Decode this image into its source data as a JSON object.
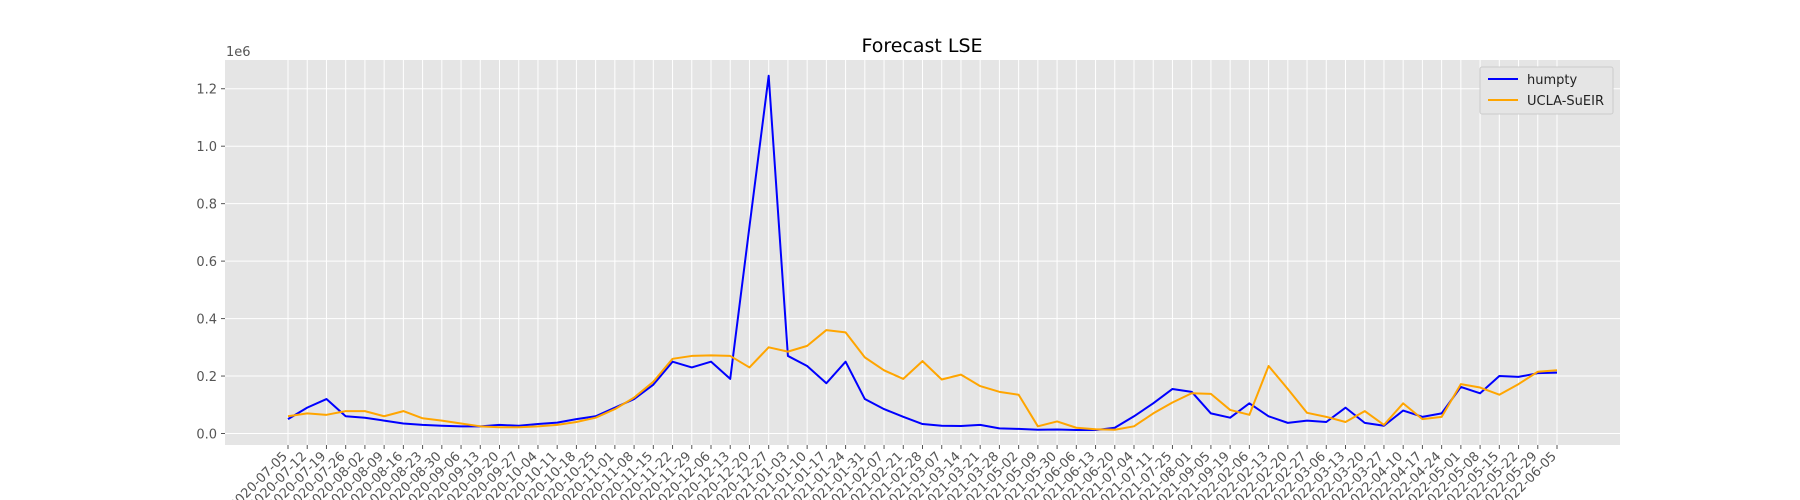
{
  "chart_data": {
    "type": "line",
    "title": "Forecast LSE",
    "xlabel": "",
    "ylabel": "",
    "y_scale_label": "1e6",
    "ylim": [
      -0.04,
      1.3
    ],
    "yticks": [
      0.0,
      0.2,
      0.4,
      0.6,
      0.8,
      1.0,
      1.2
    ],
    "ytick_labels": [
      "0.0",
      "0.2",
      "0.4",
      "0.6",
      "0.8",
      "1.0",
      "1.2"
    ],
    "grid": true,
    "legend_position": "top-right",
    "x": [
      "2020-07-05",
      "2020-07-12",
      "2020-07-19",
      "2020-07-26",
      "2020-08-02",
      "2020-08-09",
      "2020-08-16",
      "2020-08-23",
      "2020-08-30",
      "2020-09-06",
      "2020-09-13",
      "2020-09-20",
      "2020-09-27",
      "2020-10-04",
      "2020-10-11",
      "2020-10-18",
      "2020-10-25",
      "2020-11-01",
      "2020-11-08",
      "2020-11-15",
      "2020-11-22",
      "2020-11-29",
      "2020-12-06",
      "2020-12-13",
      "2020-12-20",
      "2020-12-27",
      "2021-01-03",
      "2021-01-10",
      "2021-01-17",
      "2021-01-24",
      "2021-01-31",
      "2021-02-07",
      "2021-02-21",
      "2021-02-28",
      "2021-03-07",
      "2021-03-14",
      "2021-03-21",
      "2021-03-28",
      "2021-05-02",
      "2021-05-09",
      "2021-05-30",
      "2021-06-06",
      "2021-06-13",
      "2021-06-20",
      "2021-07-04",
      "2021-07-11",
      "2021-07-25",
      "2021-08-01",
      "2021-09-05",
      "2021-09-19",
      "2022-02-06",
      "2022-02-13",
      "2022-02-20",
      "2022-02-27",
      "2022-03-06",
      "2022-03-13",
      "2022-03-20",
      "2022-03-27",
      "2022-04-10",
      "2022-04-17",
      "2022-04-24",
      "2022-05-01",
      "2022-05-08",
      "2022-05-15",
      "2022-05-22",
      "2022-05-29",
      "2022-06-05"
    ],
    "series": [
      {
        "name": "humpty",
        "color": "#0000ff",
        "values": [
          0.05,
          0.09,
          0.12,
          0.06,
          0.055,
          0.045,
          0.035,
          0.03,
          0.027,
          0.025,
          0.025,
          0.03,
          0.027,
          0.033,
          0.038,
          0.05,
          0.06,
          0.09,
          0.12,
          0.17,
          0.25,
          0.23,
          0.25,
          0.19,
          0.72,
          1.245,
          0.27,
          0.235,
          0.175,
          0.25,
          0.12,
          0.085,
          0.058,
          0.033,
          0.027,
          0.026,
          0.03,
          0.018,
          0.016,
          0.013,
          0.014,
          0.012,
          0.012,
          0.02,
          0.06,
          0.105,
          0.155,
          0.145,
          0.07,
          0.055,
          0.105,
          0.06,
          0.037,
          0.045,
          0.04,
          0.09,
          0.037,
          0.027,
          0.08,
          0.058,
          0.07,
          0.162,
          0.14,
          0.2,
          0.197,
          0.21,
          0.212
        ]
      },
      {
        "name": "UCLA-SuEIR",
        "color": "#ffa500",
        "values": [
          0.06,
          0.07,
          0.065,
          0.078,
          0.078,
          0.06,
          0.078,
          0.053,
          0.045,
          0.035,
          0.025,
          0.022,
          0.022,
          0.025,
          0.03,
          0.04,
          0.055,
          0.085,
          0.125,
          0.18,
          0.26,
          0.27,
          0.272,
          0.27,
          0.23,
          0.3,
          0.285,
          0.305,
          0.36,
          0.352,
          0.265,
          0.22,
          0.19,
          0.252,
          0.188,
          0.205,
          0.165,
          0.145,
          0.135,
          0.025,
          0.042,
          0.02,
          0.015,
          0.013,
          0.025,
          0.07,
          0.108,
          0.14,
          0.138,
          0.082,
          0.065,
          0.235,
          0.155,
          0.072,
          0.058,
          0.04,
          0.078,
          0.03,
          0.105,
          0.05,
          0.058,
          0.172,
          0.16,
          0.135,
          0.172,
          0.215,
          0.22
        ]
      }
    ]
  }
}
